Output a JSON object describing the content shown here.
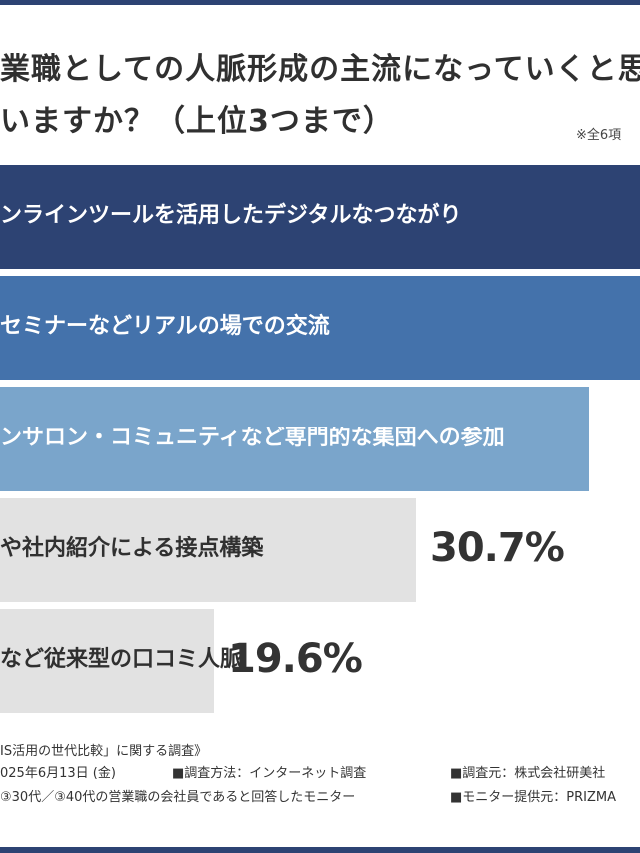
{
  "header": {
    "question_line1": "業職としての人脈形成の主流になっていくと思",
    "question_line2": "いますか？（上位3つまで）",
    "note": "※全6項"
  },
  "chart_data": {
    "type": "bar",
    "orientation": "horizontal",
    "categories": [
      "ンラインツールを活用したデジタルなつながり",
      "セミナーなどリアルの場での交流",
      "ンサロン・コミュニティなど専門的な集団への参加",
      "や社内紹介による接点構築",
      "など従来型の口コミ人脈"
    ],
    "values": [
      null,
      null,
      null,
      30.7,
      19.6
    ],
    "value_labels": [
      "",
      "",
      "",
      "30.7%",
      "19.6%"
    ],
    "bar_fractions": [
      1.0,
      1.0,
      0.92,
      0.65,
      0.335
    ],
    "colors": [
      "#2d4373",
      "#4472ab",
      "#7aa5cb",
      "#e2e2e2",
      "#e2e2e2"
    ]
  },
  "footer": {
    "line1": "IS活用の世代比較」に関する調査》",
    "line2a": "025年6月13日 (金)",
    "line2b": "■調査方法：インターネット調査",
    "line2c": "■調査元：株式会社研美社",
    "line3a": "③30代／③40代の営業職の会社員であると回答したモニター",
    "line3b": "■モニター提供元：PRIZMA"
  }
}
